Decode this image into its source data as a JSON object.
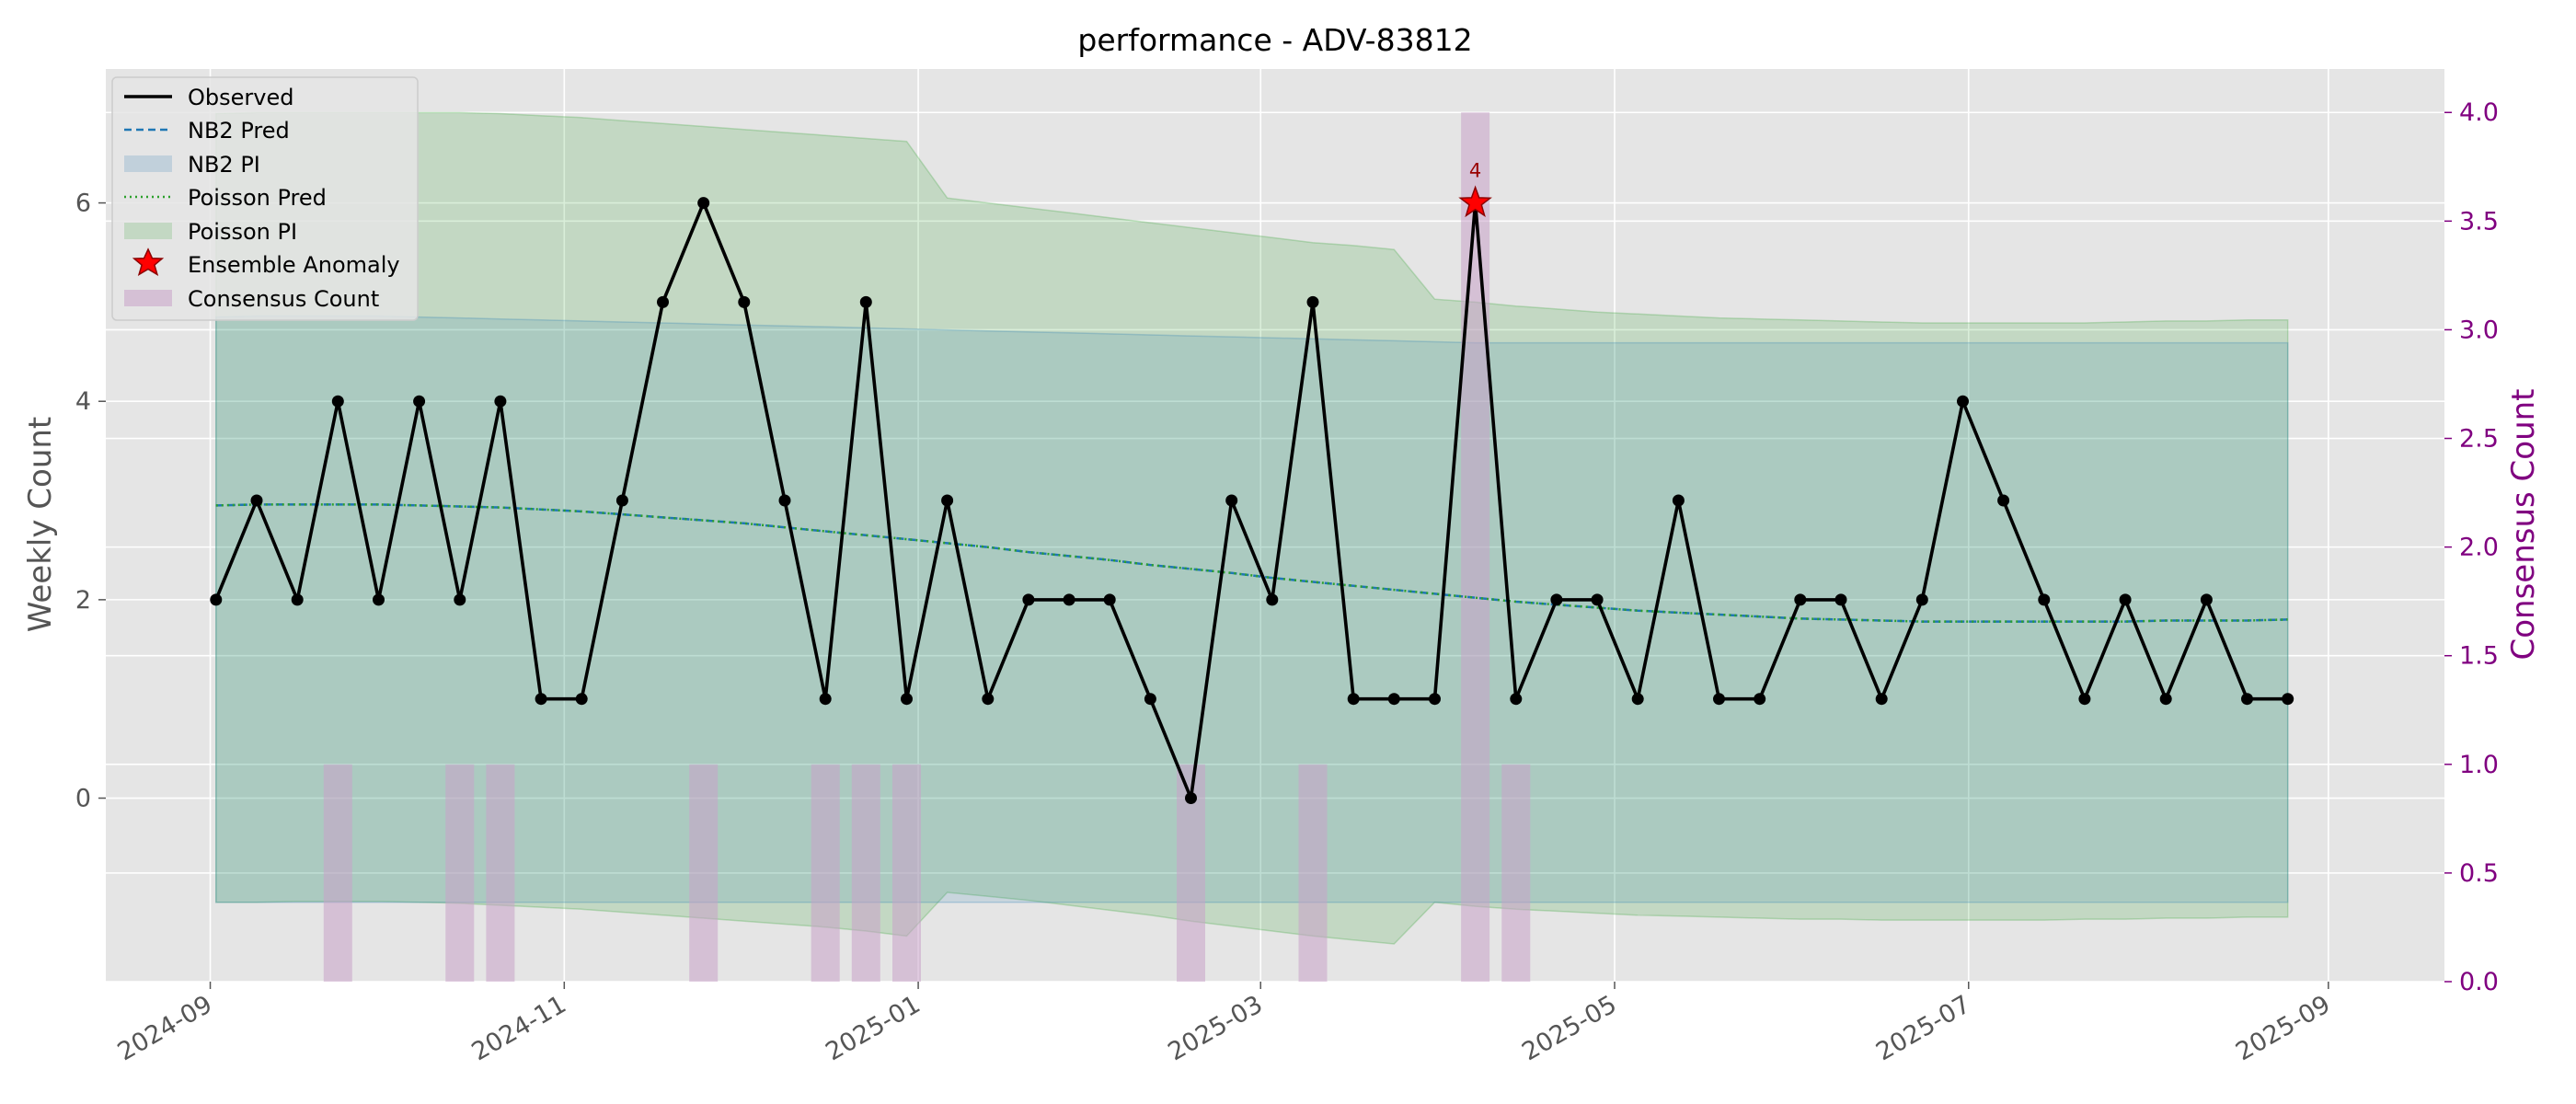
{
  "chart_data": {
    "type": "line",
    "title": "performance - ADV-83812",
    "ylabel": "Weekly Count",
    "ylabel_right": "Consensus Count",
    "xlabel": "",
    "x_ticks": [
      "2024-09",
      "2024-11",
      "2025-01",
      "2025-03",
      "2025-05",
      "2025-07",
      "2025-09"
    ],
    "y_ticks": [
      "0",
      "2",
      "4",
      "6"
    ],
    "y_right_ticks": [
      "0.0",
      "0.5",
      "1.0",
      "1.5",
      "2.0",
      "2.5",
      "3.0",
      "3.5",
      "4.0"
    ],
    "xlim": [
      "2024-08-14",
      "2025-09-21"
    ],
    "ylim": [
      -1.85,
      7.35
    ],
    "ylim_right": [
      0.0,
      4.2
    ],
    "grid": true,
    "legend_position": "upper-left",
    "dates": [
      "2024-09-02",
      "2024-09-09",
      "2024-09-16",
      "2024-09-23",
      "2024-09-30",
      "2024-10-07",
      "2024-10-14",
      "2024-10-21",
      "2024-10-28",
      "2024-11-04",
      "2024-11-11",
      "2024-11-18",
      "2024-11-25",
      "2024-12-02",
      "2024-12-09",
      "2024-12-16",
      "2024-12-23",
      "2024-12-30",
      "2025-01-06",
      "2025-01-13",
      "2025-01-20",
      "2025-01-27",
      "2025-02-03",
      "2025-02-10",
      "2025-02-17",
      "2025-02-24",
      "2025-03-03",
      "2025-03-10",
      "2025-03-17",
      "2025-03-24",
      "2025-03-31",
      "2025-04-07",
      "2025-04-14",
      "2025-04-21",
      "2025-04-28",
      "2025-05-05",
      "2025-05-12",
      "2025-05-19",
      "2025-05-26",
      "2025-06-02",
      "2025-06-09",
      "2025-06-16",
      "2025-06-23",
      "2025-06-30",
      "2025-07-07",
      "2025-07-14",
      "2025-07-21",
      "2025-07-28",
      "2025-08-04",
      "2025-08-11",
      "2025-08-18",
      "2025-08-25"
    ],
    "series": [
      {
        "name": "Observed",
        "color": "#000000",
        "values": [
          2,
          3,
          2,
          4,
          2,
          4,
          2,
          4,
          1,
          1,
          3,
          5,
          6,
          5,
          3,
          1,
          5,
          1,
          3,
          1,
          2,
          2,
          2,
          1,
          0,
          3,
          2,
          5,
          1,
          1,
          1,
          6,
          1,
          2,
          2,
          1,
          3,
          1,
          1,
          2,
          2,
          1,
          2,
          4,
          3,
          2,
          1,
          2,
          1,
          2,
          1,
          1
        ]
      },
      {
        "name": "NB2 Pred",
        "color": "#1f77b4",
        "values": [
          2.95,
          2.96,
          2.96,
          2.96,
          2.96,
          2.95,
          2.94,
          2.93,
          2.91,
          2.89,
          2.86,
          2.83,
          2.8,
          2.77,
          2.73,
          2.69,
          2.65,
          2.61,
          2.57,
          2.53,
          2.48,
          2.44,
          2.4,
          2.35,
          2.31,
          2.27,
          2.22,
          2.18,
          2.14,
          2.1,
          2.06,
          2.02,
          1.98,
          1.95,
          1.92,
          1.89,
          1.87,
          1.85,
          1.83,
          1.81,
          1.8,
          1.79,
          1.78,
          1.78,
          1.78,
          1.78,
          1.78,
          1.78,
          1.79,
          1.79,
          1.79,
          1.8
        ]
      },
      {
        "name": "Poisson Pred",
        "color": "#2ca02c",
        "values": [
          2.95,
          2.96,
          2.96,
          2.96,
          2.96,
          2.95,
          2.94,
          2.93,
          2.91,
          2.89,
          2.86,
          2.83,
          2.8,
          2.77,
          2.73,
          2.69,
          2.65,
          2.61,
          2.57,
          2.53,
          2.48,
          2.44,
          2.4,
          2.35,
          2.31,
          2.27,
          2.22,
          2.18,
          2.14,
          2.1,
          2.06,
          2.02,
          1.98,
          1.95,
          1.92,
          1.89,
          1.87,
          1.85,
          1.83,
          1.81,
          1.8,
          1.79,
          1.78,
          1.78,
          1.78,
          1.78,
          1.78,
          1.78,
          1.79,
          1.79,
          1.79,
          1.8
        ]
      }
    ],
    "nb2_pi": {
      "name": "NB2 PI",
      "color": "#1f77b4",
      "upper": [
        4.85,
        4.86,
        4.86,
        4.86,
        4.86,
        4.85,
        4.84,
        4.83,
        4.82,
        4.81,
        4.8,
        4.79,
        4.78,
        4.77,
        4.76,
        4.75,
        4.74,
        4.73,
        4.72,
        4.71,
        4.7,
        4.69,
        4.68,
        4.67,
        4.66,
        4.65,
        4.64,
        4.63,
        4.62,
        4.61,
        4.6,
        4.59,
        4.59,
        4.59,
        4.59,
        4.59,
        4.59,
        4.59,
        4.59,
        4.59,
        4.59,
        4.59,
        4.59,
        4.59,
        4.59,
        4.59,
        4.59,
        4.59,
        4.59,
        4.59,
        4.59,
        4.59
      ],
      "lower": [
        -1.05,
        -1.05,
        -1.05,
        -1.05,
        -1.05,
        -1.05,
        -1.05,
        -1.05,
        -1.05,
        -1.05,
        -1.05,
        -1.05,
        -1.05,
        -1.05,
        -1.05,
        -1.05,
        -1.05,
        -1.05,
        -1.05,
        -1.05,
        -1.05,
        -1.05,
        -1.05,
        -1.05,
        -1.05,
        -1.05,
        -1.05,
        -1.05,
        -1.05,
        -1.05,
        -1.05,
        -1.05,
        -1.05,
        -1.05,
        -1.05,
        -1.05,
        -1.05,
        -1.05,
        -1.05,
        -1.05,
        -1.05,
        -1.05,
        -1.05,
        -1.05,
        -1.05,
        -1.05,
        -1.05,
        -1.05,
        -1.05,
        -1.05,
        -1.05,
        -1.05
      ]
    },
    "poisson_pi": {
      "name": "Poisson PI",
      "color": "#2ca02c",
      "upper": [
        6.9,
        6.91,
        6.91,
        6.91,
        6.91,
        6.91,
        6.91,
        6.9,
        6.88,
        6.86,
        6.83,
        6.8,
        6.77,
        6.74,
        6.71,
        6.68,
        6.65,
        6.62,
        6.05,
        6.0,
        5.95,
        5.9,
        5.85,
        5.8,
        5.75,
        5.7,
        5.65,
        5.6,
        5.57,
        5.53,
        5.03,
        5.0,
        4.96,
        4.93,
        4.9,
        4.88,
        4.86,
        4.84,
        4.83,
        4.82,
        4.81,
        4.8,
        4.79,
        4.79,
        4.79,
        4.79,
        4.79,
        4.8,
        4.81,
        4.81,
        4.82,
        4.82
      ],
      "lower": [
        -1.05,
        -1.05,
        -1.04,
        -1.04,
        -1.04,
        -1.05,
        -1.06,
        -1.08,
        -1.1,
        -1.12,
        -1.15,
        -1.18,
        -1.21,
        -1.24,
        -1.27,
        -1.3,
        -1.34,
        -1.39,
        -0.95,
        -0.99,
        -1.03,
        -1.08,
        -1.13,
        -1.18,
        -1.24,
        -1.29,
        -1.34,
        -1.39,
        -1.43,
        -1.47,
        -1.05,
        -1.09,
        -1.12,
        -1.14,
        -1.16,
        -1.18,
        -1.19,
        -1.2,
        -1.21,
        -1.22,
        -1.22,
        -1.23,
        -1.23,
        -1.23,
        -1.23,
        -1.23,
        -1.22,
        -1.22,
        -1.21,
        -1.21,
        -1.2,
        -1.2
      ]
    },
    "consensus": {
      "name": "Consensus Count",
      "color": "#c8a2c8",
      "dates": [
        "2024-09-23",
        "2024-10-14",
        "2024-10-21",
        "2024-11-25",
        "2024-12-16",
        "2024-12-23",
        "2024-12-30",
        "2025-02-17",
        "2025-03-10",
        "2025-04-07",
        "2025-04-14"
      ],
      "values": [
        1,
        1,
        1,
        1,
        1,
        1,
        1,
        1,
        1,
        4,
        1
      ]
    },
    "anomalies": {
      "name": "Ensemble Anomaly",
      "color": "#ff0000",
      "points": [
        {
          "date": "2025-04-07",
          "value": 6,
          "label": "4"
        }
      ]
    }
  },
  "legend": {
    "observed": "Observed",
    "nb2_pred": "NB2 Pred",
    "nb2_pi": "NB2 PI",
    "poisson_pred": "Poisson Pred",
    "poisson_pi": "Poisson PI",
    "anomaly": "Ensemble Anomaly",
    "consensus": "Consensus Count"
  },
  "colors": {
    "plot_background": "#e5e5e5",
    "grid": "#ffffff",
    "consensus_axis": "#800080"
  }
}
